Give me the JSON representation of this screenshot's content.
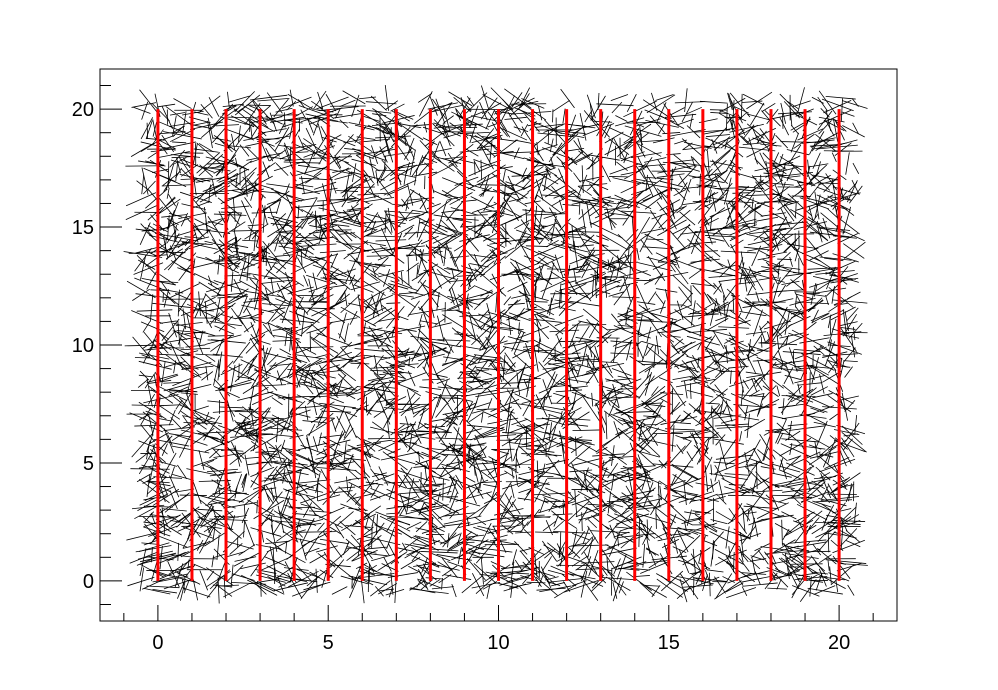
{
  "chart_data": {
    "type": "line",
    "title": "",
    "xlabel": "",
    "ylabel": "",
    "xlim": [
      -1.7,
      21.7
    ],
    "ylim": [
      -1.7,
      21.7
    ],
    "x_ticks": [
      0,
      5,
      10,
      15,
      20
    ],
    "y_ticks": [
      0,
      5,
      10,
      15,
      20
    ],
    "x_tick_labels": [
      "0",
      "5",
      "10",
      "15",
      "20"
    ],
    "y_tick_labels": [
      "0",
      "5",
      "10",
      "15",
      "20"
    ],
    "grid": false,
    "legend": "none",
    "series": [
      {
        "style": "vertical-lines",
        "color": "#ff0000",
        "x": [
          0,
          1,
          2,
          3,
          4,
          5,
          6,
          7,
          8,
          9,
          10,
          11,
          12,
          13,
          14,
          15,
          16,
          17,
          18,
          19,
          20
        ],
        "y_range": [
          0,
          20
        ]
      },
      {
        "style": "random-segments",
        "color": "#000000",
        "x_range": [
          -0.5,
          20.5
        ],
        "y_range": [
          -0.5,
          20.5
        ],
        "approx_segment_length": 0.8
      }
    ]
  }
}
